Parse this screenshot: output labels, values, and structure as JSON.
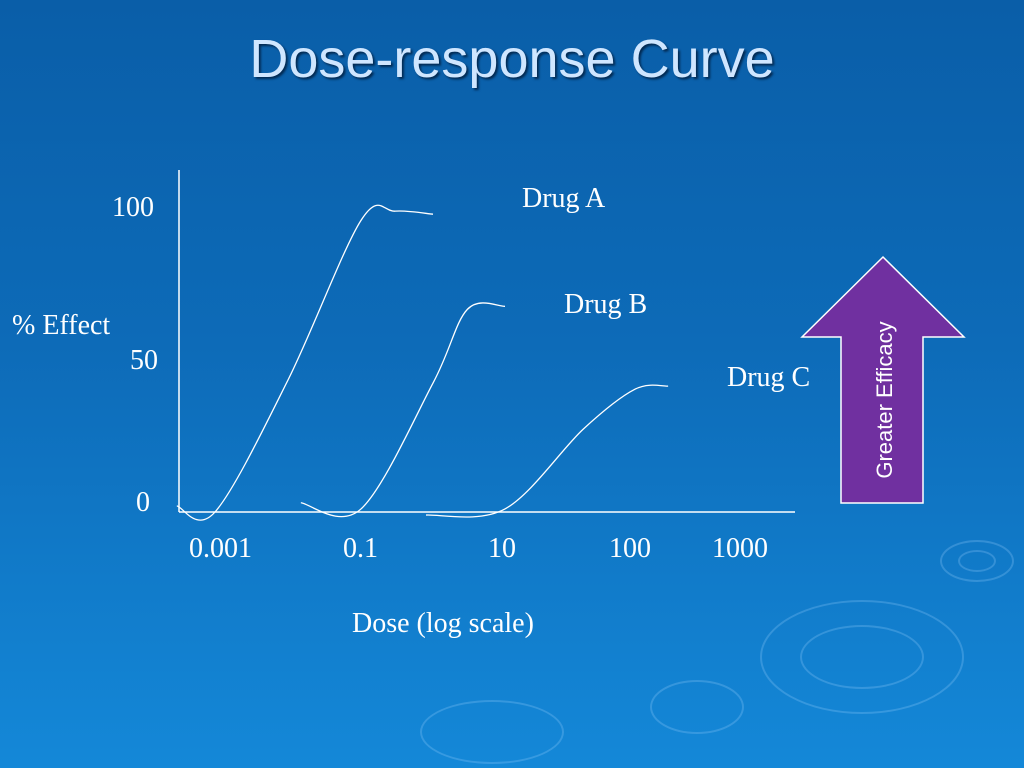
{
  "slide": {
    "title": "Dose-response Curve"
  },
  "chart_data": {
    "type": "line",
    "title": "",
    "xlabel": "Dose (log scale)",
    "ylabel": "% Effect",
    "x_scale": "log",
    "x_ticks": [
      "0.001",
      "0.1",
      "10",
      "100",
      "1000"
    ],
    "y_ticks": [
      "0",
      "50",
      "100"
    ],
    "ylim": [
      0,
      100
    ],
    "grid": false,
    "series": [
      {
        "name": "Drug A",
        "x": [
          0.0003,
          0.001,
          0.01,
          0.1,
          0.3,
          1
        ],
        "y": [
          2,
          0,
          43,
          95,
          98,
          97
        ]
      },
      {
        "name": "Drug B",
        "x": [
          0.015,
          0.1,
          1,
          3,
          10
        ],
        "y": [
          3,
          1,
          42,
          66,
          67
        ]
      },
      {
        "name": "Drug C",
        "x": [
          0.8,
          10,
          40,
          100,
          200
        ],
        "y": [
          -1,
          1,
          27,
          40,
          41
        ]
      }
    ],
    "annotation": {
      "text": "Greater Efficacy",
      "color": "#7030a0",
      "direction": "up"
    }
  }
}
